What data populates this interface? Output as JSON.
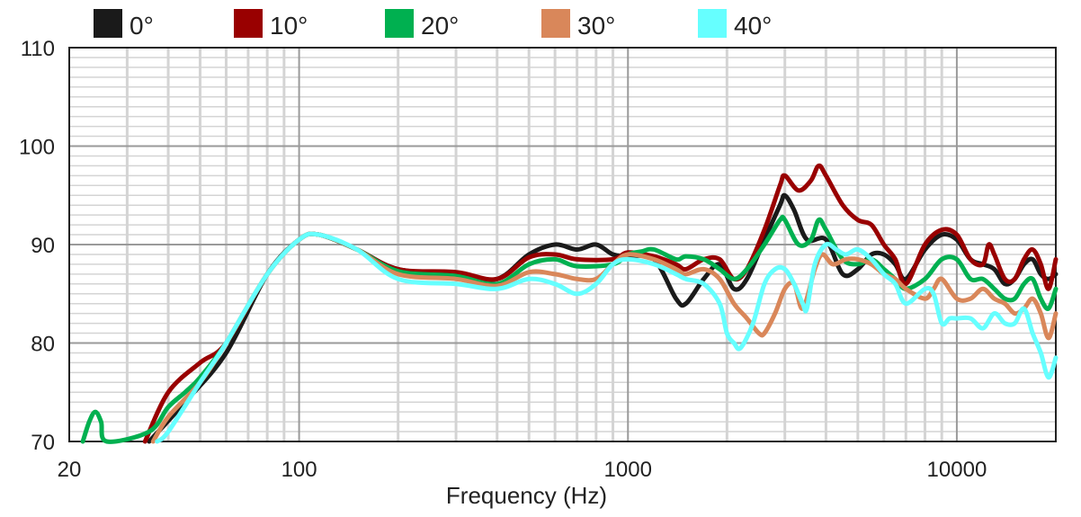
{
  "chart_data": {
    "type": "line",
    "title": "",
    "xlabel": "Frequency (Hz)",
    "ylabel": "",
    "xscale": "log",
    "xlim": [
      20,
      20000
    ],
    "ylim": [
      70,
      110
    ],
    "grid": true,
    "legend_position": "top",
    "x_ticks": [
      {
        "value": 20,
        "label": "20"
      },
      {
        "value": 100,
        "label": "100"
      },
      {
        "value": 1000,
        "label": "1000"
      },
      {
        "value": 10000,
        "label": "10000"
      }
    ],
    "y_ticks": [
      {
        "value": 70,
        "label": "70"
      },
      {
        "value": 80,
        "label": "80"
      },
      {
        "value": 90,
        "label": "90"
      },
      {
        "value": 100,
        "label": "100"
      },
      {
        "value": 110,
        "label": "110"
      }
    ],
    "series": [
      {
        "name": "0°",
        "color": "#1a1a1a",
        "points": [
          [
            35,
            70
          ],
          [
            45,
            74
          ],
          [
            60,
            79
          ],
          [
            80,
            87
          ],
          [
            100,
            90.5
          ],
          [
            115,
            91
          ],
          [
            150,
            89.5
          ],
          [
            200,
            87.5
          ],
          [
            300,
            87
          ],
          [
            400,
            86.5
          ],
          [
            500,
            89
          ],
          [
            600,
            90
          ],
          [
            700,
            89.5
          ],
          [
            800,
            90
          ],
          [
            900,
            89
          ],
          [
            1000,
            88.8
          ],
          [
            1200,
            88.5
          ],
          [
            1400,
            84.5
          ],
          [
            1500,
            84
          ],
          [
            1700,
            86.5
          ],
          [
            1900,
            88
          ],
          [
            2100,
            85.5
          ],
          [
            2300,
            86.5
          ],
          [
            2600,
            90.5
          ],
          [
            2900,
            94
          ],
          [
            3000,
            95
          ],
          [
            3200,
            93.5
          ],
          [
            3500,
            90.5
          ],
          [
            4000,
            90.5
          ],
          [
            4500,
            87
          ],
          [
            5000,
            87.5
          ],
          [
            5500,
            89
          ],
          [
            6000,
            89
          ],
          [
            6500,
            88
          ],
          [
            7000,
            86.5
          ],
          [
            8000,
            89.5
          ],
          [
            9000,
            91
          ],
          [
            10000,
            90.5
          ],
          [
            11000,
            88.5
          ],
          [
            12000,
            88
          ],
          [
            13000,
            87.5
          ],
          [
            14000,
            86
          ],
          [
            15000,
            86.5
          ],
          [
            16000,
            88
          ],
          [
            17000,
            88.5
          ],
          [
            18000,
            87
          ],
          [
            19000,
            86.5
          ],
          [
            20000,
            87
          ]
        ]
      },
      {
        "name": "10°",
        "color": "#990000",
        "points": [
          [
            34,
            70
          ],
          [
            40,
            75
          ],
          [
            50,
            78
          ],
          [
            60,
            80
          ],
          [
            80,
            87
          ],
          [
            100,
            90.5
          ],
          [
            115,
            91
          ],
          [
            150,
            89.5
          ],
          [
            200,
            87.5
          ],
          [
            300,
            87.2
          ],
          [
            400,
            86.5
          ],
          [
            500,
            88.7
          ],
          [
            600,
            89
          ],
          [
            700,
            88.5
          ],
          [
            900,
            88.5
          ],
          [
            1000,
            89.2
          ],
          [
            1200,
            88.8
          ],
          [
            1400,
            88
          ],
          [
            1500,
            87.5
          ],
          [
            1700,
            88.5
          ],
          [
            1900,
            88.5
          ],
          [
            2100,
            86.5
          ],
          [
            2300,
            87.5
          ],
          [
            2600,
            91.5
          ],
          [
            2900,
            96
          ],
          [
            3000,
            97
          ],
          [
            3300,
            95.5
          ],
          [
            3600,
            96.5
          ],
          [
            3800,
            98
          ],
          [
            4000,
            97
          ],
          [
            4500,
            94
          ],
          [
            5000,
            92.5
          ],
          [
            5500,
            92
          ],
          [
            6000,
            90
          ],
          [
            6500,
            88.5
          ],
          [
            7000,
            86
          ],
          [
            8000,
            90
          ],
          [
            9000,
            91.5
          ],
          [
            10000,
            91
          ],
          [
            11000,
            88.5
          ],
          [
            12000,
            88
          ],
          [
            12500,
            90
          ],
          [
            13000,
            89
          ],
          [
            14000,
            86.5
          ],
          [
            15000,
            86.5
          ],
          [
            16000,
            88.5
          ],
          [
            17000,
            89.5
          ],
          [
            18000,
            88
          ],
          [
            19000,
            85.5
          ],
          [
            20000,
            88.5
          ]
        ]
      },
      {
        "name": "20°",
        "color": "#00b050",
        "points": [
          [
            22,
            70
          ],
          [
            23,
            72
          ],
          [
            24,
            73
          ],
          [
            25,
            72
          ],
          [
            26,
            70
          ],
          [
            35,
            71
          ],
          [
            40,
            73.5
          ],
          [
            45,
            75
          ],
          [
            50,
            76.5
          ],
          [
            60,
            80
          ],
          [
            80,
            87
          ],
          [
            100,
            90.5
          ],
          [
            115,
            91
          ],
          [
            150,
            89.5
          ],
          [
            200,
            87.3
          ],
          [
            300,
            86.8
          ],
          [
            400,
            86
          ],
          [
            500,
            88
          ],
          [
            600,
            88.5
          ],
          [
            700,
            87.8
          ],
          [
            900,
            88
          ],
          [
            1000,
            89
          ],
          [
            1100,
            89.3
          ],
          [
            1200,
            89.5
          ],
          [
            1400,
            88.5
          ],
          [
            1500,
            88.8
          ],
          [
            1700,
            88.5
          ],
          [
            1900,
            87.5
          ],
          [
            2100,
            86.5
          ],
          [
            2300,
            87.5
          ],
          [
            2600,
            90
          ],
          [
            2900,
            92.5
          ],
          [
            3000,
            92.5
          ],
          [
            3300,
            90
          ],
          [
            3600,
            90.5
          ],
          [
            3800,
            92.5
          ],
          [
            4000,
            91.5
          ],
          [
            4500,
            88.5
          ],
          [
            5000,
            88
          ],
          [
            5500,
            88.5
          ],
          [
            6000,
            87.5
          ],
          [
            6500,
            86.5
          ],
          [
            7000,
            85.5
          ],
          [
            8000,
            86.5
          ],
          [
            9000,
            88.5
          ],
          [
            10000,
            88.5
          ],
          [
            11000,
            86.5
          ],
          [
            12000,
            86.5
          ],
          [
            13000,
            85.5
          ],
          [
            14000,
            84.5
          ],
          [
            15000,
            84.5
          ],
          [
            16000,
            86
          ],
          [
            17000,
            86.5
          ],
          [
            18000,
            84.5
          ],
          [
            19000,
            83.5
          ],
          [
            20000,
            85.5
          ]
        ]
      },
      {
        "name": "30°",
        "color": "#d9875a",
        "points": [
          [
            36,
            70
          ],
          [
            40,
            72.5
          ],
          [
            50,
            76
          ],
          [
            60,
            80
          ],
          [
            80,
            87
          ],
          [
            100,
            90.5
          ],
          [
            115,
            91
          ],
          [
            150,
            89.5
          ],
          [
            200,
            87
          ],
          [
            300,
            86.5
          ],
          [
            400,
            85.8
          ],
          [
            500,
            87.2
          ],
          [
            600,
            87
          ],
          [
            700,
            86.5
          ],
          [
            800,
            86.5
          ],
          [
            900,
            88
          ],
          [
            1000,
            89
          ],
          [
            1200,
            88.5
          ],
          [
            1400,
            87.5
          ],
          [
            1500,
            87
          ],
          [
            1700,
            87.5
          ],
          [
            1900,
            86.5
          ],
          [
            2100,
            84
          ],
          [
            2300,
            82.5
          ],
          [
            2500,
            81
          ],
          [
            2600,
            81
          ],
          [
            2800,
            83
          ],
          [
            3000,
            85.5
          ],
          [
            3200,
            86
          ],
          [
            3400,
            83.5
          ],
          [
            3700,
            87.5
          ],
          [
            3900,
            89
          ],
          [
            4200,
            88
          ],
          [
            4600,
            88.5
          ],
          [
            5000,
            88.5
          ],
          [
            5500,
            88
          ],
          [
            6000,
            87
          ],
          [
            6500,
            86.5
          ],
          [
            7000,
            85.5
          ],
          [
            8000,
            84.5
          ],
          [
            8500,
            85.5
          ],
          [
            9000,
            86.5
          ],
          [
            10000,
            84.5
          ],
          [
            11000,
            84.5
          ],
          [
            12000,
            85.5
          ],
          [
            13000,
            84.5
          ],
          [
            14000,
            84
          ],
          [
            15000,
            83
          ],
          [
            16000,
            83.5
          ],
          [
            17000,
            84.5
          ],
          [
            18000,
            83
          ],
          [
            19000,
            80.5
          ],
          [
            20000,
            83
          ]
        ]
      },
      {
        "name": "40°",
        "color": "#66ffff",
        "points": [
          [
            37,
            70
          ],
          [
            40,
            71
          ],
          [
            50,
            76
          ],
          [
            60,
            80
          ],
          [
            80,
            87
          ],
          [
            100,
            90.5
          ],
          [
            115,
            91
          ],
          [
            150,
            89.5
          ],
          [
            200,
            86.5
          ],
          [
            300,
            86
          ],
          [
            400,
            85.5
          ],
          [
            500,
            86.5
          ],
          [
            600,
            86
          ],
          [
            700,
            85
          ],
          [
            800,
            86
          ],
          [
            900,
            88
          ],
          [
            1000,
            88.5
          ],
          [
            1200,
            88
          ],
          [
            1400,
            87
          ],
          [
            1500,
            86.5
          ],
          [
            1700,
            86
          ],
          [
            1900,
            84
          ],
          [
            2000,
            81
          ],
          [
            2100,
            80
          ],
          [
            2200,
            79.5
          ],
          [
            2400,
            82
          ],
          [
            2600,
            86
          ],
          [
            2800,
            87.5
          ],
          [
            3000,
            87.5
          ],
          [
            3200,
            86
          ],
          [
            3400,
            84
          ],
          [
            3500,
            83.5
          ],
          [
            3700,
            88
          ],
          [
            4000,
            90
          ],
          [
            4300,
            89.5
          ],
          [
            4600,
            89
          ],
          [
            5000,
            89.5
          ],
          [
            5500,
            88.5
          ],
          [
            6000,
            87
          ],
          [
            6500,
            86
          ],
          [
            7000,
            84
          ],
          [
            8000,
            85.5
          ],
          [
            8500,
            85
          ],
          [
            9000,
            82
          ],
          [
            9500,
            82.5
          ],
          [
            10000,
            82.5
          ],
          [
            11000,
            82.5
          ],
          [
            12000,
            81.5
          ],
          [
            13000,
            83
          ],
          [
            14000,
            82
          ],
          [
            15000,
            82
          ],
          [
            16000,
            83.5
          ],
          [
            17000,
            81
          ],
          [
            18000,
            79
          ],
          [
            19000,
            76.5
          ],
          [
            20000,
            78.5
          ]
        ]
      }
    ]
  }
}
